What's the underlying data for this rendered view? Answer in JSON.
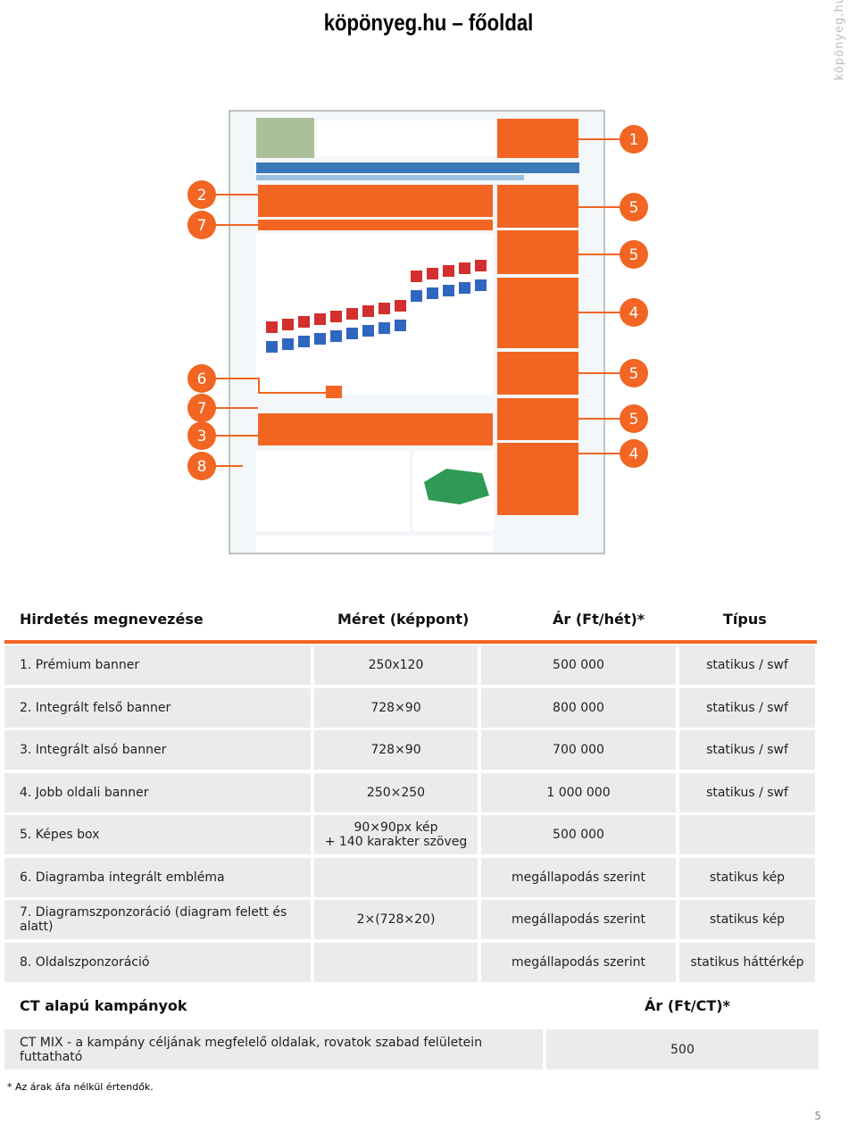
{
  "header": {
    "title": "köpönyeg.hu – főoldal",
    "side_label": "köpönyeg.hu"
  },
  "callouts": {
    "left": [
      "2",
      "7",
      "6",
      "7",
      "3",
      "8"
    ],
    "right": [
      "1",
      "5",
      "5",
      "4",
      "5",
      "5",
      "4"
    ]
  },
  "table": {
    "headers": [
      "Hirdetés megnevezése",
      "Méret (képpont)",
      "Ár (Ft/hét)*",
      "Típus"
    ],
    "rows": [
      {
        "name": "1. Prémium banner",
        "size": "250x120",
        "price": "500 000",
        "type": "statikus / swf"
      },
      {
        "name": "2. Integrált felső banner",
        "size": "728×90",
        "price": "800 000",
        "type": "statikus / swf"
      },
      {
        "name": "3. Integrált alsó banner",
        "size": "728×90",
        "price": "700 000",
        "type": "statikus / swf"
      },
      {
        "name": "4. Jobb oldali banner",
        "size": "250×250",
        "price": "1 000 000",
        "type": "statikus / swf"
      },
      {
        "name": "5. Képes box",
        "size": "90×90px kép",
        "size2": "+ 140 karakter szöveg",
        "price": "500 000"
      },
      {
        "name": "6. Diagramba integrált embléma",
        "price": "megállapodás szerint",
        "type": "statikus kép"
      },
      {
        "name": "7. Diagramszponzoráció (diagram felett és alatt)",
        "size": "2×(728×20)",
        "price": "megállapodás szerint",
        "type": "statikus kép"
      },
      {
        "name": "8. Oldalszponzoráció",
        "price": "megállapodás szerint",
        "type": "statikus háttérkép"
      }
    ]
  },
  "ct": {
    "headers": [
      "CT alapú kampányok",
      "Ár (Ft/CT)*"
    ],
    "row": [
      "CT MIX - a kampány céljának megfelelő oldalak, rovatok szabad felületein futtatható",
      "500"
    ]
  },
  "footnote": "* Az árak áfa nélkül értendők.",
  "page_number": "5"
}
